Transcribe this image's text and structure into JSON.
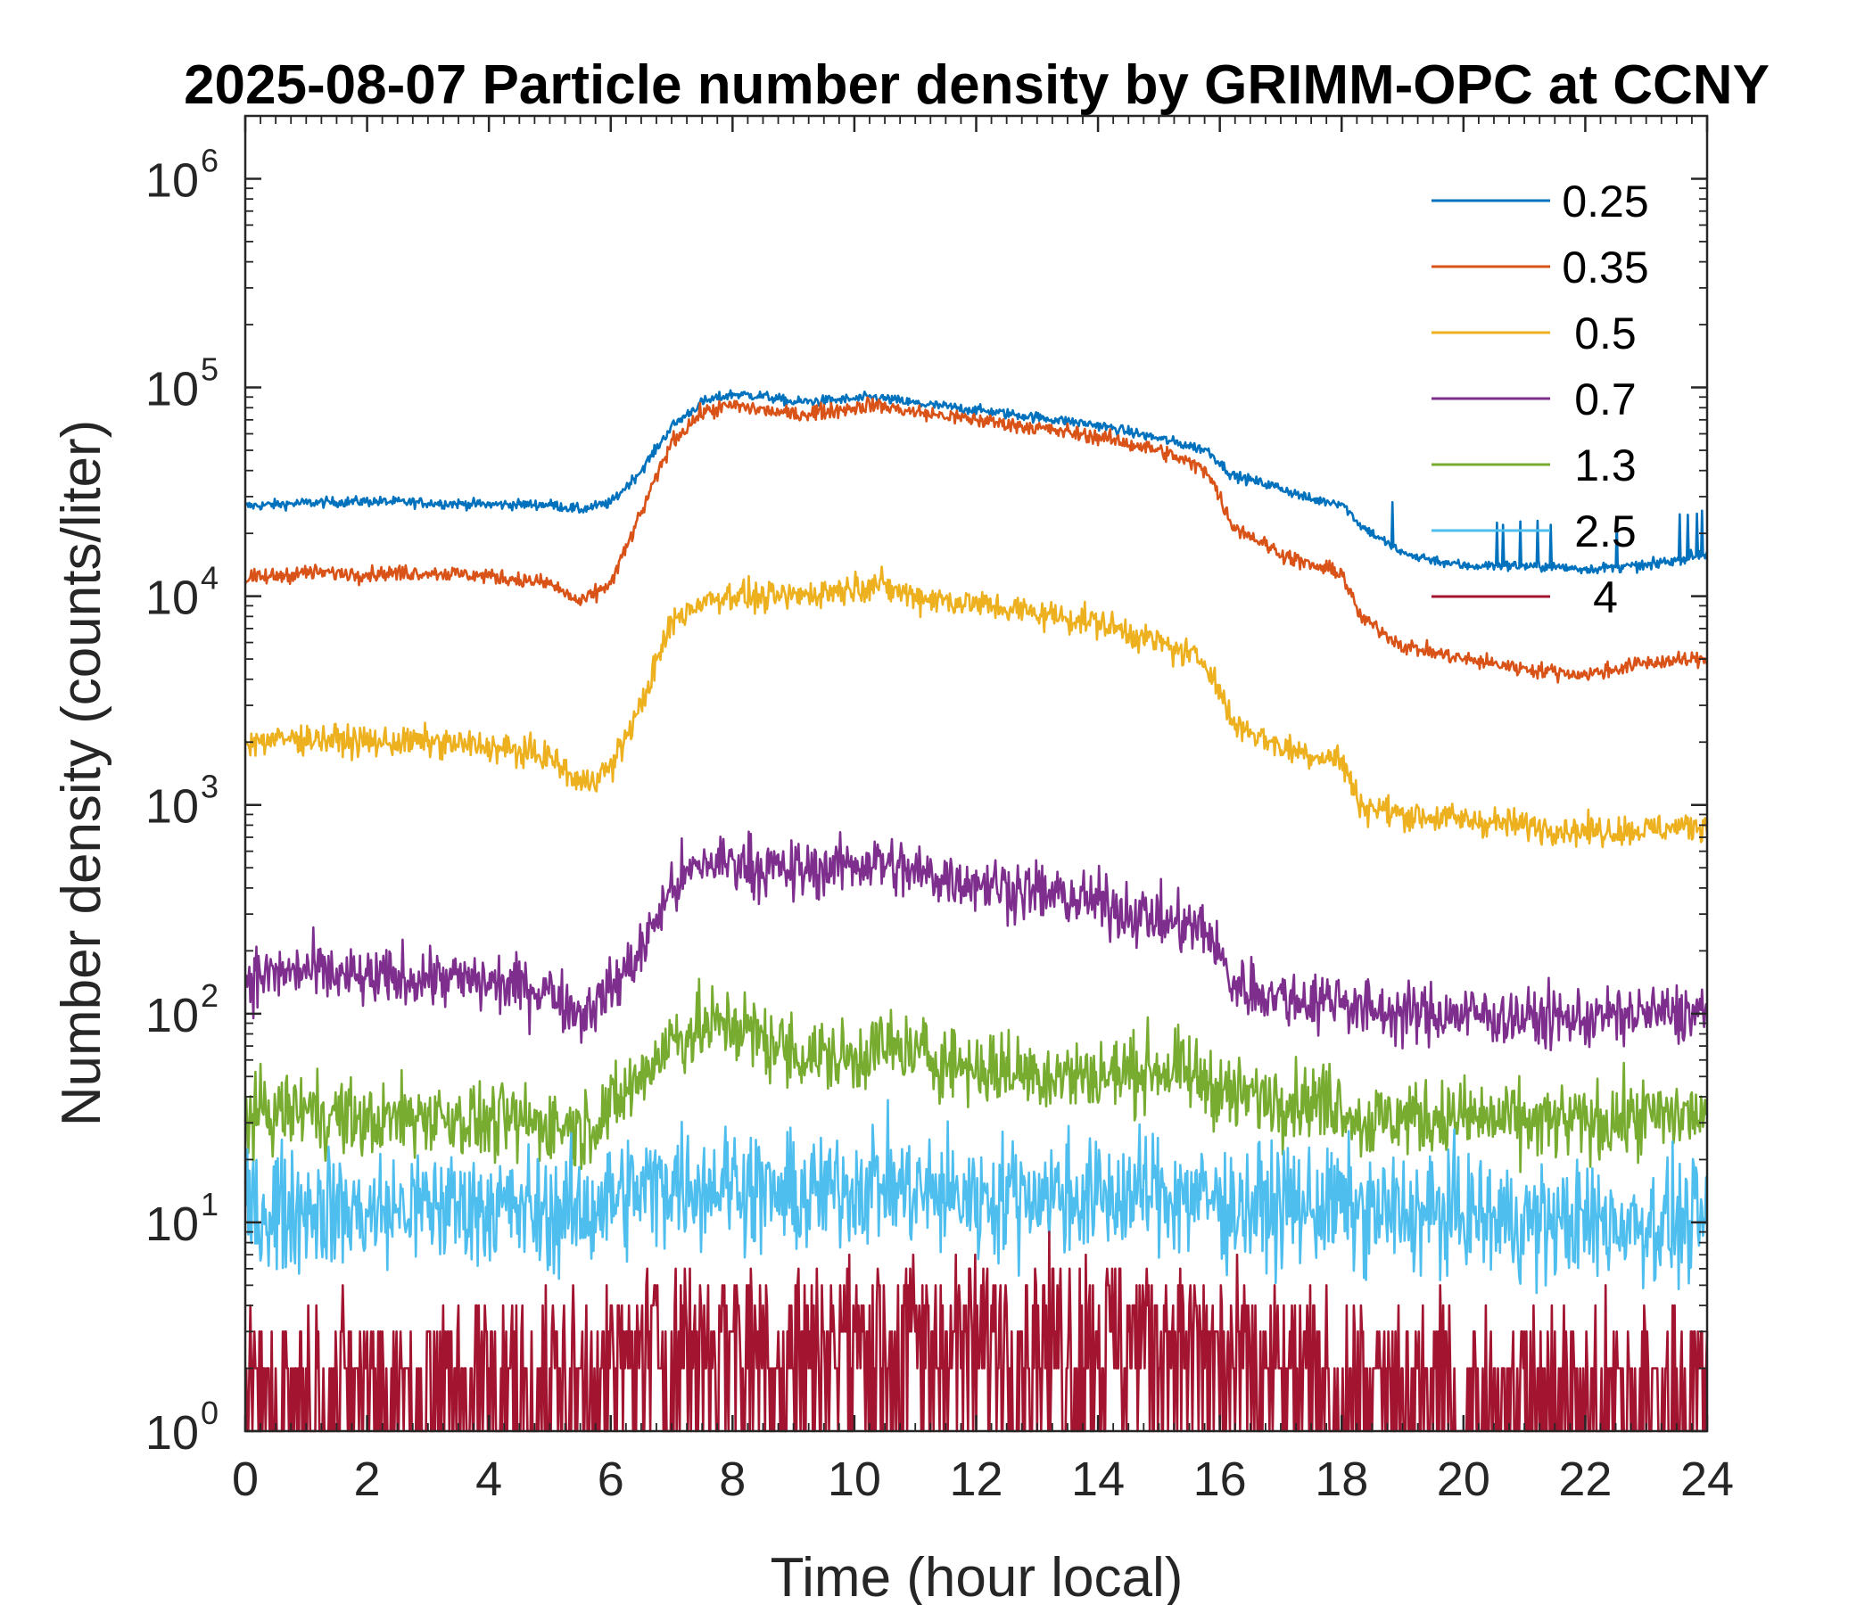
{
  "chart_data": {
    "type": "line",
    "title": "2025-08-07 Particle number density by GRIMM-OPC at CCNY",
    "xlabel": "Time (hour local)",
    "ylabel": "Number density (counts/liter)",
    "yscale": "log",
    "xlim": [
      0,
      24
    ],
    "ylim": [
      1,
      2000000
    ],
    "xticks": [
      0,
      2,
      4,
      6,
      8,
      10,
      12,
      14,
      16,
      18,
      20,
      22,
      24
    ],
    "yticks": [
      {
        "value": 1,
        "base": "10",
        "exp": "0"
      },
      {
        "value": 10,
        "base": "10",
        "exp": "1"
      },
      {
        "value": 100,
        "base": "10",
        "exp": "2"
      },
      {
        "value": 1000,
        "base": "10",
        "exp": "3"
      },
      {
        "value": 10000,
        "base": "10",
        "exp": "4"
      },
      {
        "value": 100000,
        "base": "10",
        "exp": "5"
      },
      {
        "value": 1000000,
        "base": "10",
        "exp": "6"
      }
    ],
    "legend_position": "top-right",
    "x": [
      0,
      1,
      2,
      3,
      4,
      5,
      5.5,
      6,
      6.5,
      7,
      7.5,
      8,
      8.5,
      9,
      10,
      10.3,
      11,
      12,
      13,
      14,
      15,
      15.8,
      16.2,
      17,
      17.5,
      18,
      18.3,
      19,
      20,
      21,
      22,
      23,
      24
    ],
    "series": [
      {
        "name": "0.25",
        "color": "#0072BD",
        "values": [
          27000,
          28000,
          28500,
          28000,
          27500,
          27500,
          26000,
          28000,
          40000,
          65000,
          85000,
          93000,
          91000,
          85000,
          88000,
          90000,
          84000,
          78000,
          72000,
          66000,
          57000,
          50000,
          38000,
          33000,
          29000,
          28000,
          22000,
          16000,
          14000,
          14000,
          13500,
          14000,
          16000
        ]
      },
      {
        "name": "0.35",
        "color": "#D95319",
        "values": [
          12000,
          13000,
          12800,
          13000,
          12500,
          11500,
          9300,
          11500,
          25000,
          55000,
          76000,
          82000,
          78000,
          74000,
          80000,
          83000,
          76000,
          70000,
          64000,
          58000,
          50000,
          40000,
          22000,
          16000,
          14000,
          13000,
          8000,
          5800,
          5000,
          4500,
          4200,
          4800,
          5000
        ]
      },
      {
        "name": "0.5",
        "color": "#EDB120",
        "values": [
          2000,
          2100,
          2000,
          2000,
          1900,
          1700,
          1250,
          1500,
          3000,
          7500,
          9500,
          10200,
          9800,
          10000,
          11000,
          11500,
          10000,
          9200,
          8300,
          7500,
          6000,
          4800,
          2500,
          1900,
          1750,
          1650,
          1000,
          900,
          850,
          800,
          750,
          760,
          800
        ]
      },
      {
        "name": "0.7",
        "color": "#7E2F8E",
        "values": [
          150,
          160,
          145,
          150,
          140,
          130,
          100,
          130,
          200,
          400,
          520,
          540,
          500,
          480,
          520,
          540,
          470,
          430,
          380,
          340,
          280,
          250,
          140,
          120,
          115,
          120,
          105,
          100,
          100,
          95,
          95,
          100,
          100
        ]
      },
      {
        "name": "1.3",
        "color": "#77AC30",
        "values": [
          32,
          35,
          30,
          33,
          30,
          30,
          28,
          35,
          50,
          75,
          85,
          90,
          75,
          65,
          60,
          70,
          65,
          55,
          52,
          50,
          55,
          48,
          40,
          40,
          38,
          38,
          30,
          32,
          32,
          30,
          30,
          32,
          33
        ]
      },
      {
        "name": "2.5",
        "color": "#4DBEEE",
        "values": [
          11,
          12,
          11,
          12,
          12,
          11,
          11,
          13,
          14,
          16,
          15,
          16,
          14,
          13,
          15,
          16,
          14,
          13,
          14,
          13,
          14,
          13,
          12,
          12,
          12,
          12,
          11,
          11,
          11,
          10,
          10,
          10,
          10
        ]
      },
      {
        "name": "4",
        "color": "#A2142F",
        "values": [
          1.5,
          1.5,
          1.6,
          1.5,
          1.8,
          1.7,
          1.6,
          2.0,
          2.5,
          2.8,
          2.8,
          3.0,
          2.8,
          2.6,
          2.8,
          2.8,
          2.8,
          2.8,
          3.0,
          3.0,
          3.0,
          2.5,
          2.0,
          1.8,
          1.7,
          1.6,
          1.5,
          1.5,
          1.4,
          1.4,
          1.4,
          1.4,
          1.4
        ]
      }
    ]
  }
}
